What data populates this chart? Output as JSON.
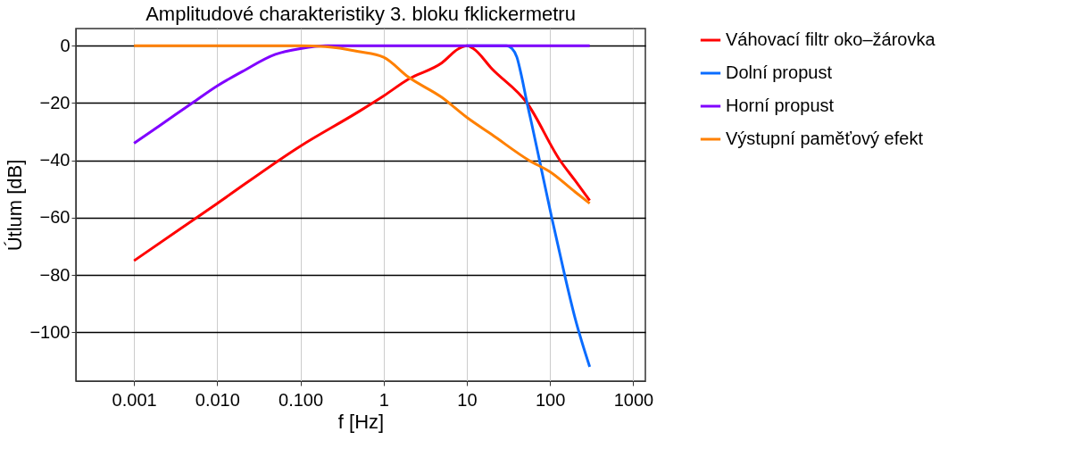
{
  "chart_data": {
    "type": "line",
    "title": "Amplitudové charakteristiky 3. bloku fklickermetru",
    "xlabel": "f [Hz]",
    "ylabel": "Útlum [dB]",
    "log": "x",
    "grid": true,
    "legend": "right",
    "marker": "none",
    "line_style": "solid",
    "xlim": [
      0.0002,
      1400
    ],
    "ylim": [
      -117,
      6
    ],
    "xticks": [
      {
        "value": 0.001,
        "label": "0.001"
      },
      {
        "value": 0.01,
        "label": "0.010"
      },
      {
        "value": 0.1,
        "label": "0.100"
      },
      1,
      10,
      100,
      {
        "value": 1000,
        "label": "1000"
      }
    ],
    "yticks": [
      -100,
      -80,
      -60,
      -40,
      -20,
      0
    ],
    "series": [
      {
        "name": "Váhovací filtr oko–žárovka",
        "color": "#ff0000",
        "x": [
          0.001,
          0.01,
          0.1,
          0.5,
          1,
          2,
          5,
          8,
          10,
          12,
          20,
          53,
          132,
          200,
          300
        ],
        "values": [
          -75,
          -55,
          -35,
          -23,
          -17.5,
          -11.6,
          -6,
          -1,
          0,
          -1,
          -8,
          -20,
          -40,
          -47,
          -54
        ]
      },
      {
        "name": "Dolní propust",
        "color": "#0a6cff",
        "x": [
          10,
          30,
          35,
          40,
          45,
          53,
          60,
          80,
          105,
          150,
          200,
          300
        ],
        "values": [
          0,
          0,
          -1,
          -4,
          -10,
          -20,
          -27,
          -44,
          -60,
          -80,
          -95,
          -112
        ]
      },
      {
        "name": "Horní propust",
        "color": "#8000ff",
        "x": [
          0.001,
          0.002,
          0.005,
          0.01,
          0.02,
          0.05,
          0.1,
          0.2,
          1,
          10,
          300
        ],
        "values": [
          -34,
          -28,
          -20,
          -14,
          -9,
          -3,
          -1,
          0,
          0,
          0,
          0
        ]
      },
      {
        "name": "Výstupní paměťový efekt",
        "color": "#ff8000",
        "x": [
          0.001,
          0.01,
          0.1,
          0.2,
          0.5,
          1,
          2,
          5,
          10,
          20,
          56,
          100,
          200,
          300
        ],
        "values": [
          0,
          0,
          0,
          -0.3,
          -2,
          -4,
          -11,
          -18,
          -25,
          -31,
          -40,
          -44,
          -51,
          -55
        ]
      }
    ]
  }
}
